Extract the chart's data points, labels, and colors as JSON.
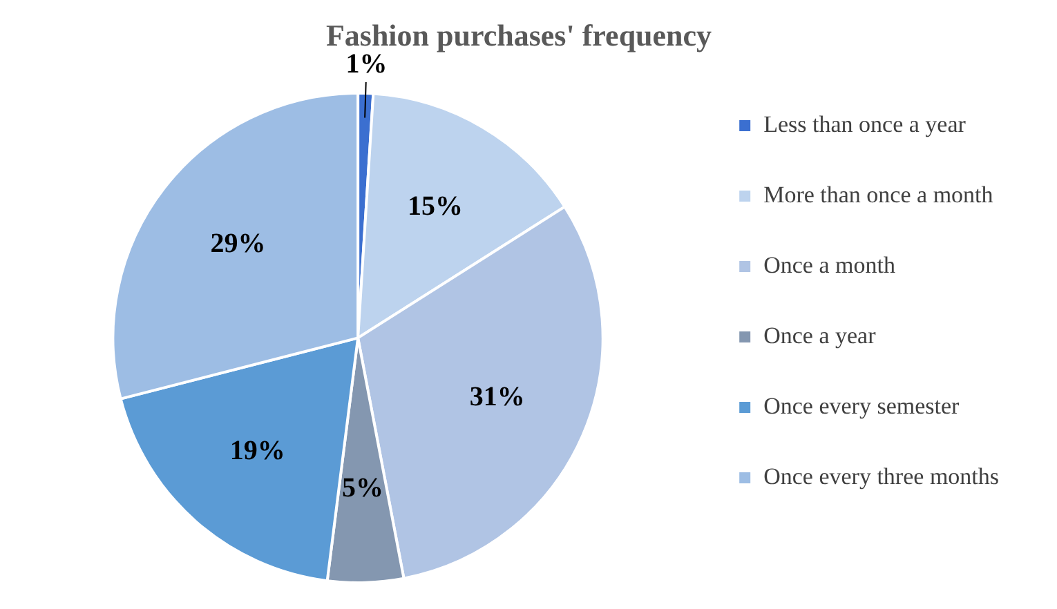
{
  "chart_data": {
    "type": "pie",
    "title": "Fashion purchases' frequency",
    "categories": [
      "Less than once a year",
      "More than once a month",
      "Once a month",
      "Once a year",
      "Once every semester",
      "Once every three months"
    ],
    "values": [
      1,
      15,
      31,
      5,
      19,
      29
    ],
    "colors": [
      "#3b6fd0",
      "#bdd3ee",
      "#b0c4e4",
      "#8497b0",
      "#5b9bd5",
      "#9dbde4"
    ],
    "value_labels": [
      "1%",
      "15%",
      "31%",
      "5%",
      "19%",
      "29%"
    ],
    "legend": "right"
  }
}
